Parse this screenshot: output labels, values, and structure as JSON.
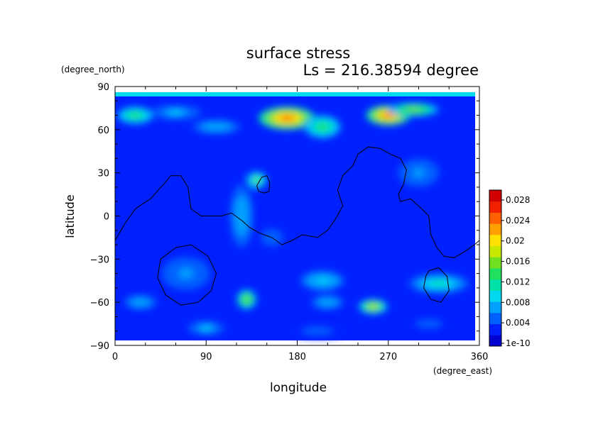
{
  "chart_data": {
    "type": "heatmap",
    "title": "surface stress",
    "subtitle": "Ls = 216.38594 degree",
    "xlabel": "longitude",
    "ylabel": "latitude",
    "x_unit": "(degree_east)",
    "y_unit": "(degree_north)",
    "xlim": [
      0,
      360
    ],
    "ylim": [
      -90,
      90
    ],
    "x_ticks": [
      "0",
      "90",
      "180",
      "270",
      "360"
    ],
    "y_ticks": [
      "90",
      "60",
      "30",
      "0",
      "−30",
      "−60",
      "−90"
    ],
    "colorbar": {
      "labels": [
        "1e-10",
        "0.004",
        "0.008",
        "0.012",
        "0.016",
        "0.02",
        "0.024",
        "0.028"
      ],
      "min": 0,
      "max": 0.03,
      "colors": [
        "#0000d0",
        "#0020ff",
        "#0060ff",
        "#00a0ff",
        "#00d8f0",
        "#00e0a8",
        "#20e060",
        "#70e020",
        "#c8e800",
        "#ffe000",
        "#ffa000",
        "#ff6000",
        "#f02000",
        "#d00000"
      ]
    },
    "field_features": [
      {
        "lon": 20,
        "lat": 70,
        "value": 0.014,
        "rx": 18,
        "ry": 6
      },
      {
        "lon": 60,
        "lat": 72,
        "value": 0.009,
        "rx": 25,
        "ry": 5
      },
      {
        "lon": 170,
        "lat": 68,
        "value": 0.024,
        "rx": 28,
        "ry": 8
      },
      {
        "lon": 205,
        "lat": 62,
        "value": 0.014,
        "rx": 18,
        "ry": 8
      },
      {
        "lon": 270,
        "lat": 70,
        "value": 0.024,
        "rx": 22,
        "ry": 7
      },
      {
        "lon": 295,
        "lat": 74,
        "value": 0.016,
        "rx": 25,
        "ry": 5
      },
      {
        "lon": 100,
        "lat": 62,
        "value": 0.008,
        "rx": 30,
        "ry": 6
      },
      {
        "lon": 140,
        "lat": 25,
        "value": 0.015,
        "rx": 10,
        "ry": 6
      },
      {
        "lon": 125,
        "lat": 0,
        "value": 0.008,
        "rx": 14,
        "ry": 28
      },
      {
        "lon": 155,
        "lat": -15,
        "value": 0.006,
        "rx": 20,
        "ry": 10
      },
      {
        "lon": 300,
        "lat": 30,
        "value": 0.007,
        "rx": 25,
        "ry": 12
      },
      {
        "lon": 70,
        "lat": -40,
        "value": 0.007,
        "rx": 30,
        "ry": 14
      },
      {
        "lon": 25,
        "lat": -60,
        "value": 0.008,
        "rx": 20,
        "ry": 6
      },
      {
        "lon": 130,
        "lat": -58,
        "value": 0.016,
        "rx": 10,
        "ry": 7
      },
      {
        "lon": 205,
        "lat": -45,
        "value": 0.01,
        "rx": 22,
        "ry": 7
      },
      {
        "lon": 210,
        "lat": -60,
        "value": 0.008,
        "rx": 20,
        "ry": 6
      },
      {
        "lon": 255,
        "lat": -63,
        "value": 0.018,
        "rx": 14,
        "ry": 5
      },
      {
        "lon": 320,
        "lat": -47,
        "value": 0.012,
        "rx": 30,
        "ry": 7
      },
      {
        "lon": 90,
        "lat": -78,
        "value": 0.009,
        "rx": 18,
        "ry": 5
      },
      {
        "lon": 200,
        "lat": -80,
        "value": 0.006,
        "rx": 30,
        "ry": 5
      },
      {
        "lon": 310,
        "lat": -75,
        "value": 0.006,
        "rx": 25,
        "ry": 5
      }
    ],
    "contour_lines": [
      [
        [
          0,
          -17
        ],
        [
          10,
          -5
        ],
        [
          20,
          5
        ],
        [
          35,
          12
        ],
        [
          48,
          22
        ],
        [
          55,
          28
        ],
        [
          65,
          28
        ],
        [
          72,
          20
        ],
        [
          75,
          5
        ],
        [
          85,
          0
        ],
        [
          95,
          0
        ],
        [
          105,
          0
        ],
        [
          115,
          2
        ],
        [
          125,
          -3
        ],
        [
          133,
          -8
        ],
        [
          143,
          -12
        ],
        [
          155,
          -15
        ],
        [
          165,
          -20
        ],
        [
          175,
          -17
        ],
        [
          185,
          -13
        ],
        [
          200,
          -15
        ],
        [
          210,
          -10
        ],
        [
          218,
          -2
        ],
        [
          225,
          7
        ],
        [
          220,
          18
        ],
        [
          225,
          28
        ],
        [
          235,
          35
        ],
        [
          240,
          43
        ],
        [
          250,
          48
        ],
        [
          262,
          47
        ],
        [
          272,
          43
        ],
        [
          282,
          40
        ],
        [
          288,
          32
        ],
        [
          285,
          22
        ],
        [
          280,
          15
        ],
        [
          282,
          10
        ],
        [
          292,
          12
        ],
        [
          303,
          5
        ],
        [
          310,
          0
        ],
        [
          312,
          -13
        ],
        [
          318,
          -22
        ],
        [
          325,
          -28
        ],
        [
          335,
          -29
        ],
        [
          345,
          -25
        ],
        [
          355,
          -20
        ],
        [
          360,
          -17
        ]
      ],
      [
        [
          140,
          21
        ],
        [
          145,
          27
        ],
        [
          150,
          28
        ],
        [
          153,
          23
        ],
        [
          152,
          17
        ],
        [
          147,
          16
        ],
        [
          142,
          17
        ],
        [
          140,
          21
        ]
      ],
      [
        [
          60,
          -22
        ],
        [
          75,
          -20
        ],
        [
          92,
          -28
        ],
        [
          100,
          -40
        ],
        [
          95,
          -52
        ],
        [
          82,
          -60
        ],
        [
          65,
          -62
        ],
        [
          50,
          -55
        ],
        [
          42,
          -43
        ],
        [
          45,
          -30
        ],
        [
          60,
          -22
        ]
      ],
      [
        [
          310,
          -38
        ],
        [
          320,
          -36
        ],
        [
          328,
          -42
        ],
        [
          330,
          -52
        ],
        [
          322,
          -60
        ],
        [
          312,
          -58
        ],
        [
          305,
          -50
        ],
        [
          307,
          -42
        ],
        [
          310,
          -38
        ]
      ]
    ]
  }
}
